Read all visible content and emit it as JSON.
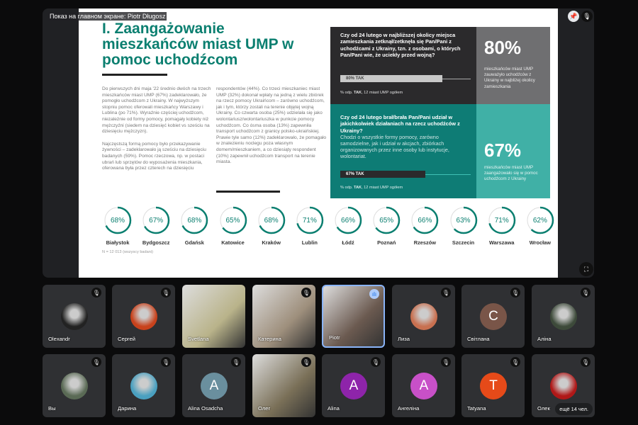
{
  "stage": {
    "title": "Показ на главном экране: Piotr Długosz",
    "pin_icon": "pin-icon",
    "mute_icon": "mic-off-icon",
    "fullscreen_icon": "fullscreen-icon"
  },
  "slide": {
    "title": "I. Zaangażowanie mieszkańców miast UMP w pomoc uchodźcom",
    "col1": "Do pierwszych dni maja '22 średnio dwóch na trzech mieszkańców miast UMP (67%) zadeklarowało, że pomogło uchodźcom z Ukrainy. W najwyższym stopniu pomoc oferowali mieszkańcy Warszawy i Lublina (po 71%). Wyraźnie częściej uchodźcom, niezależnie od formy pomocy, pomagały kobiety niż mężczyźni (siedem na dziesięć kobiet vs sześciu na dziesięciu mężczyzn).",
    "col1b": "Najczęstszą formą pomocy było przekazywanie żywności – zadeklarowało ją sześciu na dziesięciu badanych (59%). Pomoc rzeczowa, np. w postaci ubrań lub sprzętów do wyposażenia mieszkania, oferowana była przez czterech na dziesięciu",
    "col2": "respondentów (44%). Co trzeci mieszkaniec miast UMP (32%) dokonał wpłaty na jedną z wielu zbiórek na rzecz pomocy Ukraińcom – zarówno uchodźcom, jak i tym, którzy zostali na terenie objętej wojną Ukrainy. Co czwarta osoba (25%) udzielała się jako wolontariusz/wolontariuszka w punkcie pomocy uchodźcom. Co ósma osoba (13%) zapewniła transport uchodźcom z granicy polsko-ukraińskiej. Prawie tyle samo (12%) zadeklarowało, że pomagało w znalezieniu noclegu poza własnym domem/mieszkaniem, a co dziesiąty respondent (10%) zapewnił uchodźcom transport na terenie miasta.",
    "q1": {
      "question": "Czy od 24 lutego w najbliższej okolicy miejsca zamieszkania zetknął/zetknęła się Pan/Pani z uchodźcami z Ukrainy, tzn. z osobami, o których Pan/Pani wie, że uciekły przed wojną?",
      "bar_label": "80% TAK",
      "value": 80,
      "foot_pre": "% odp. ",
      "foot_bold": "TAK",
      "foot_post": ", 12 miast UMP ogółem",
      "big": "80%",
      "big_sub": "mieszkańców miast UMP zauważyło uchodźców z Ukrainy w najbliżej okolicy zamieszkania"
    },
    "q2": {
      "question": "Czy od 24 lutego brał/brała Pan/Pani udział w jakichkolwiek działaniach na rzecz uchodźców z Ukrainy?",
      "sub": "Chodzi o wszystkie formy pomocy, zarówno samodzielne, jak i udział w akcjach, zbiórkach organizowanych przez inne osoby lub instytucje, wolontariat.",
      "bar_label": "67% TAK",
      "value": 67,
      "foot_pre": "% odp. ",
      "foot_bold": "TAK",
      "foot_post": ", 12 miast UMP ogółem",
      "big": "67%",
      "big_sub": "mieszkańców miast UMP zaangażowało się w pomoc uchodźcom z Ukrainy"
    },
    "cities": [
      {
        "name": "Białystok",
        "pct": "68%",
        "value": 68
      },
      {
        "name": "Bydgoszcz",
        "pct": "67%",
        "value": 67
      },
      {
        "name": "Gdańsk",
        "pct": "68%",
        "value": 68
      },
      {
        "name": "Katowice",
        "pct": "65%",
        "value": 65
      },
      {
        "name": "Kraków",
        "pct": "68%",
        "value": 68
      },
      {
        "name": "Lublin",
        "pct": "71%",
        "value": 71
      },
      {
        "name": "Łódź",
        "pct": "66%",
        "value": 66
      },
      {
        "name": "Poznań",
        "pct": "65%",
        "value": 65
      },
      {
        "name": "Rzeszów",
        "pct": "66%",
        "value": 66
      },
      {
        "name": "Szczecin",
        "pct": "63%",
        "value": 63
      },
      {
        "name": "Warszawa",
        "pct": "71%",
        "value": 71
      },
      {
        "name": "Wrocław",
        "pct": "62%",
        "value": 62
      }
    ],
    "note": "N = 12 013 (wszyscy badani)",
    "colors": {
      "teal": "#0b7f70",
      "dark": "#2b2a2c",
      "light_teal": "#40b0a6"
    }
  },
  "participants": [
    {
      "name": "Olexandr",
      "type": "photo",
      "color": "#222",
      "muted": true
    },
    {
      "name": "Сергей",
      "type": "photo",
      "color": "#c8421c",
      "muted": true
    },
    {
      "name": "Svetlana",
      "type": "video",
      "color": "#b9b38a",
      "muted": false
    },
    {
      "name": "Катерина",
      "type": "video",
      "color": "#9e8f7c",
      "muted": true
    },
    {
      "name": "Piotr",
      "type": "video",
      "color": "#6b5a50",
      "muted": false,
      "speaking": true
    },
    {
      "name": "Лиза",
      "type": "photo",
      "color": "#c87050",
      "muted": true
    },
    {
      "name": "Світлана",
      "type": "letter",
      "letter": "C",
      "color": "#795548",
      "muted": true
    },
    {
      "name": "Аліна",
      "type": "photo",
      "color": "#3d4a3a",
      "muted": true
    },
    {
      "name": "Вы",
      "type": "photo",
      "color": "#5a6a55",
      "muted": true
    },
    {
      "name": "Дарина",
      "type": "photo",
      "color": "#4aa0c0",
      "muted": true
    },
    {
      "name": "Alina Osadcha",
      "type": "letter",
      "letter": "A",
      "color": "#6a8f9e",
      "muted": true
    },
    {
      "name": "Олег",
      "type": "video",
      "color": "#7a7058",
      "muted": true
    },
    {
      "name": "Alina",
      "type": "letter",
      "letter": "A",
      "color": "#8e24aa",
      "muted": true
    },
    {
      "name": "Ангеліна",
      "type": "letter",
      "letter": "A",
      "color": "#c850c8",
      "muted": true
    },
    {
      "name": "Tatyana",
      "type": "letter",
      "letter": "T",
      "color": "#e64a19",
      "muted": true
    },
    {
      "name": "Олек",
      "type": "photo",
      "color": "#b01818",
      "muted": true
    }
  ],
  "more_label": "ещё 14 чел."
}
